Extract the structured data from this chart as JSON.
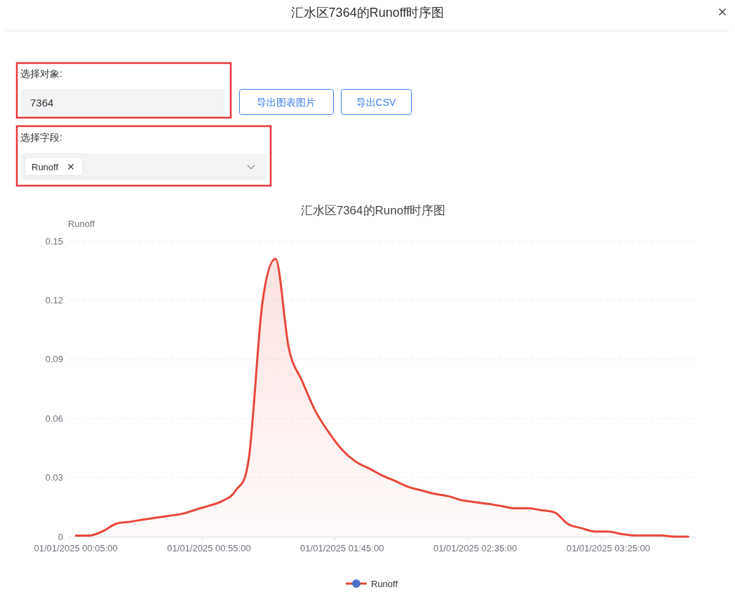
{
  "chart_data": {
    "type": "area",
    "title": "汇水区7364的Runoff时序图",
    "ylabel": "Runoff",
    "categories": [
      "01/01/2025 00:05:00",
      null,
      null,
      null,
      null,
      null,
      null,
      null,
      null,
      null,
      "01/01/2025 00:55:00",
      null,
      null,
      null,
      null,
      null,
      null,
      null,
      null,
      null,
      "01/01/2025 01:45:00",
      null,
      null,
      null,
      null,
      null,
      null,
      null,
      null,
      null,
      "01/01/2025 02:35:00",
      null,
      null,
      null,
      null,
      null,
      null,
      null,
      null,
      null,
      "01/01/2025 03:25:00",
      null,
      null,
      null,
      null,
      null,
      null
    ],
    "series": [
      {
        "name": "Runoff",
        "color": "#e8473b",
        "values": [
          0.0005,
          0.0005,
          0.0027,
          0.0065,
          0.0075,
          0.0086,
          0.0096,
          0.0106,
          0.0116,
          0.0137,
          0.0157,
          0.0181,
          0.0234,
          0.04,
          0.118,
          0.141,
          0.0956,
          0.079,
          0.0637,
          0.053,
          0.0441,
          0.0382,
          0.0347,
          0.0311,
          0.0282,
          0.0252,
          0.0234,
          0.0217,
          0.0205,
          0.0185,
          0.0175,
          0.0166,
          0.0155,
          0.0144,
          0.0144,
          0.0134,
          0.0122,
          0.0063,
          0.0043,
          0.0026,
          0.0026,
          0.0013,
          0.0006,
          0.0006,
          0.0006,
          0,
          0
        ]
      }
    ],
    "ylim": [
      0,
      0.15
    ],
    "yticks": [
      0,
      0.03,
      0.06,
      0.09,
      0.12,
      0.15
    ],
    "grid": "y",
    "legend": "bottom",
    "marker": "none",
    "annotations": [
      "汇水区7364的Runoff时序图",
      "选择对象:",
      "7364",
      "导出图表图片",
      "导出CSV",
      "选择字段:",
      "Runoff"
    ]
  }
}
